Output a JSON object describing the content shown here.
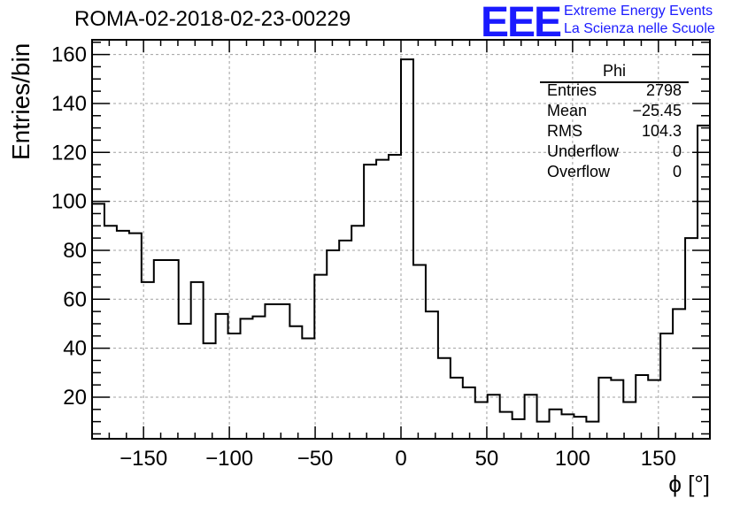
{
  "header": {
    "title": "ROMA-02-2018-02-23-00229",
    "logo_text": "EEE",
    "brand_line1": "Extreme Energy Events",
    "brand_line2": "La Scienza nelle Scuole"
  },
  "stats": {
    "title": "Phi",
    "rows": [
      {
        "key": "Entries",
        "value": "2798"
      },
      {
        "key": "Mean",
        "value": "−25.45"
      },
      {
        "key": "RMS",
        "value": "104.3"
      },
      {
        "key": "Underflow",
        "value": "0"
      },
      {
        "key": "Overflow",
        "value": "0"
      }
    ]
  },
  "colors": {
    "brand": "#1a1aff",
    "line": "#000000",
    "grid": "#a0a0a0"
  },
  "chart_data": {
    "type": "histogram",
    "xlabel": "ϕ [°]",
    "ylabel": "Entries/bin",
    "xlim": [
      -180,
      180
    ],
    "ylim": [
      3,
      166
    ],
    "bin_width": 7.2,
    "bin_edges_start": -180,
    "values": [
      99,
      90,
      88,
      87,
      67,
      76,
      76,
      50,
      67,
      42,
      54,
      46,
      52,
      53,
      58,
      58,
      49,
      44,
      70,
      80,
      84,
      90,
      115,
      117,
      119,
      158,
      74,
      55,
      36,
      28,
      24,
      18,
      21,
      14,
      11,
      21,
      10,
      15,
      13,
      12,
      10,
      28,
      27,
      18,
      29,
      27,
      46,
      56,
      85,
      131
    ],
    "xticks": [
      -150,
      -100,
      -50,
      0,
      50,
      100,
      150
    ],
    "xtick_labels": [
      "−150",
      "−100",
      "−50",
      "0",
      "50",
      "100",
      "150"
    ],
    "yticks": [
      20,
      40,
      60,
      80,
      100,
      120,
      140,
      160
    ],
    "ytick_labels": [
      "20",
      "40",
      "60",
      "80",
      "100",
      "120",
      "140",
      "160"
    ],
    "grid": true,
    "legend": "stats box top-right"
  }
}
